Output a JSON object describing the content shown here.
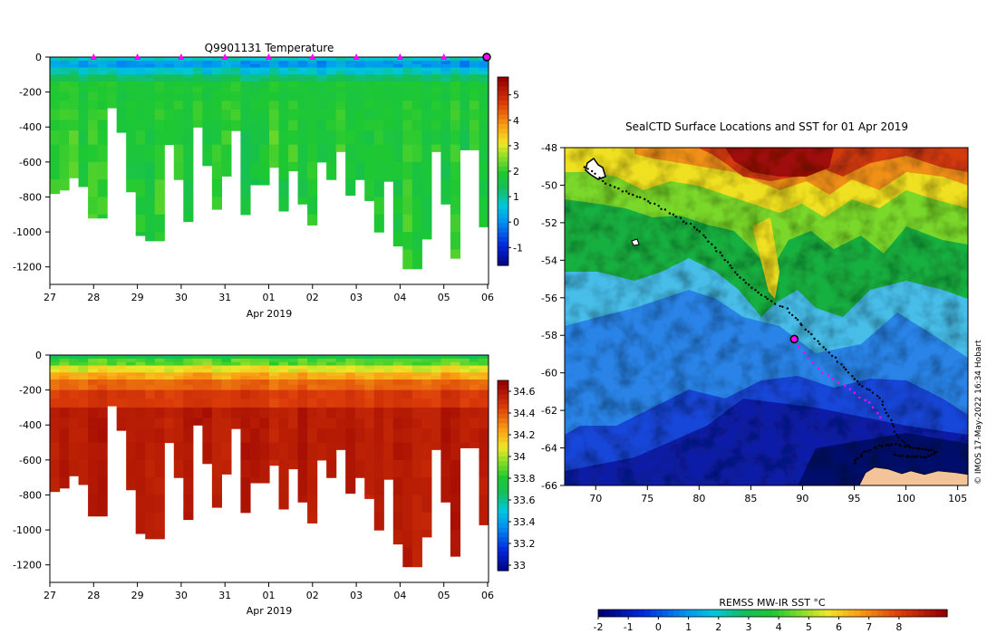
{
  "chart_data": [
    {
      "type": "heatmap",
      "title": "Q9901131  Temperature",
      "xlabel": "Apr 2019",
      "x_ticks": [
        "27",
        "28",
        "29",
        "30",
        "31",
        "01",
        "02",
        "03",
        "04",
        "05",
        "06"
      ],
      "y_ticks": [
        "0",
        "-200",
        "-400",
        "-600",
        "-800",
        "-1000",
        "-1200"
      ],
      "ylim": [
        -1300,
        0
      ],
      "colorbar_ticks": [
        "-1",
        "0",
        "1",
        "2",
        "3",
        "4",
        "5"
      ],
      "colorbar_range": [
        -1.7,
        5.7
      ],
      "marker_color": "#ff00ff",
      "profile_max_depths": [
        780,
        760,
        690,
        740,
        920,
        920,
        290,
        430,
        770,
        1020,
        1050,
        1050,
        500,
        700,
        940,
        400,
        620,
        870,
        680,
        420,
        900,
        730,
        730,
        630,
        880,
        650,
        840,
        960,
        600,
        700,
        540,
        790,
        700,
        820,
        1000,
        710,
        1080,
        1210,
        1210,
        1040,
        540,
        840,
        1150,
        530,
        530,
        970
      ]
    },
    {
      "type": "heatmap",
      "title": "",
      "xlabel": "Apr 2019",
      "x_ticks": [
        "27",
        "28",
        "29",
        "30",
        "31",
        "01",
        "02",
        "03",
        "04",
        "05",
        "06"
      ],
      "y_ticks": [
        "0",
        "-200",
        "-400",
        "-600",
        "-800",
        "-1000",
        "-1200"
      ],
      "ylim": [
        -1300,
        0
      ],
      "colorbar_ticks": [
        "33",
        "33.2",
        "33.4",
        "33.6",
        "33.8",
        "34",
        "34.2",
        "34.4",
        "34.6"
      ],
      "colorbar_range": [
        32.95,
        34.7
      ]
    },
    {
      "type": "heatmap",
      "title": "SealCTD Surface Locations and SST for 01 Apr 2019",
      "x_ticks": [
        "70",
        "75",
        "80",
        "85",
        "90",
        "95",
        "100",
        "105"
      ],
      "y_ticks": [
        "-48",
        "-50",
        "-52",
        "-54",
        "-56",
        "-58",
        "-60",
        "-62",
        "-64",
        "-66"
      ],
      "xlim": [
        67,
        106
      ],
      "ylim": [
        -66,
        -48
      ],
      "colorbar_label": "REMSS MW-IR SST °C",
      "colorbar_ticks": [
        "-2",
        "-1",
        "0",
        "1",
        "2",
        "3",
        "4",
        "5",
        "6",
        "7",
        "8"
      ],
      "colorbar_range": [
        -2,
        9.6
      ],
      "current_position": [
        89.2,
        -58.2
      ],
      "track": [
        [
          69,
          -49
        ],
        [
          70,
          -49.4
        ],
        [
          71,
          -49.9
        ],
        [
          72.5,
          -50.3
        ],
        [
          74,
          -50.6
        ],
        [
          76,
          -51.1
        ],
        [
          77.5,
          -51.6
        ],
        [
          79.5,
          -52.2
        ],
        [
          81.5,
          -53.3
        ],
        [
          83,
          -54.3
        ],
        [
          84.5,
          -55.2
        ],
        [
          85.5,
          -55.6
        ],
        [
          87,
          -56.2
        ],
        [
          88.5,
          -56.6
        ],
        [
          90,
          -57.5
        ],
        [
          92,
          -58.6
        ],
        [
          94,
          -59.7
        ],
        [
          95.5,
          -60.6
        ],
        [
          97.5,
          -61.3
        ],
        [
          98.5,
          -62.5
        ],
        [
          99.3,
          -63.5
        ],
        [
          100.5,
          -64
        ]
      ],
      "recent_track": [
        [
          89.3,
          -58.4
        ],
        [
          90.5,
          -59.2
        ],
        [
          92,
          -60
        ],
        [
          93.5,
          -60.5
        ],
        [
          95,
          -61.1
        ],
        [
          96.5,
          -61.6
        ],
        [
          98,
          -62.6
        ]
      ],
      "loop_track": [
        [
          95,
          -64.8
        ],
        [
          96,
          -64.2
        ],
        [
          97.5,
          -63.9
        ],
        [
          99,
          -63.8
        ],
        [
          101,
          -64
        ],
        [
          103,
          -64.2
        ],
        [
          102,
          -64.5
        ],
        [
          100,
          -64.5
        ],
        [
          98.5,
          -64.3
        ]
      ]
    }
  ],
  "credit": "© IMOS 17-May-2022 16:34 Hobart"
}
